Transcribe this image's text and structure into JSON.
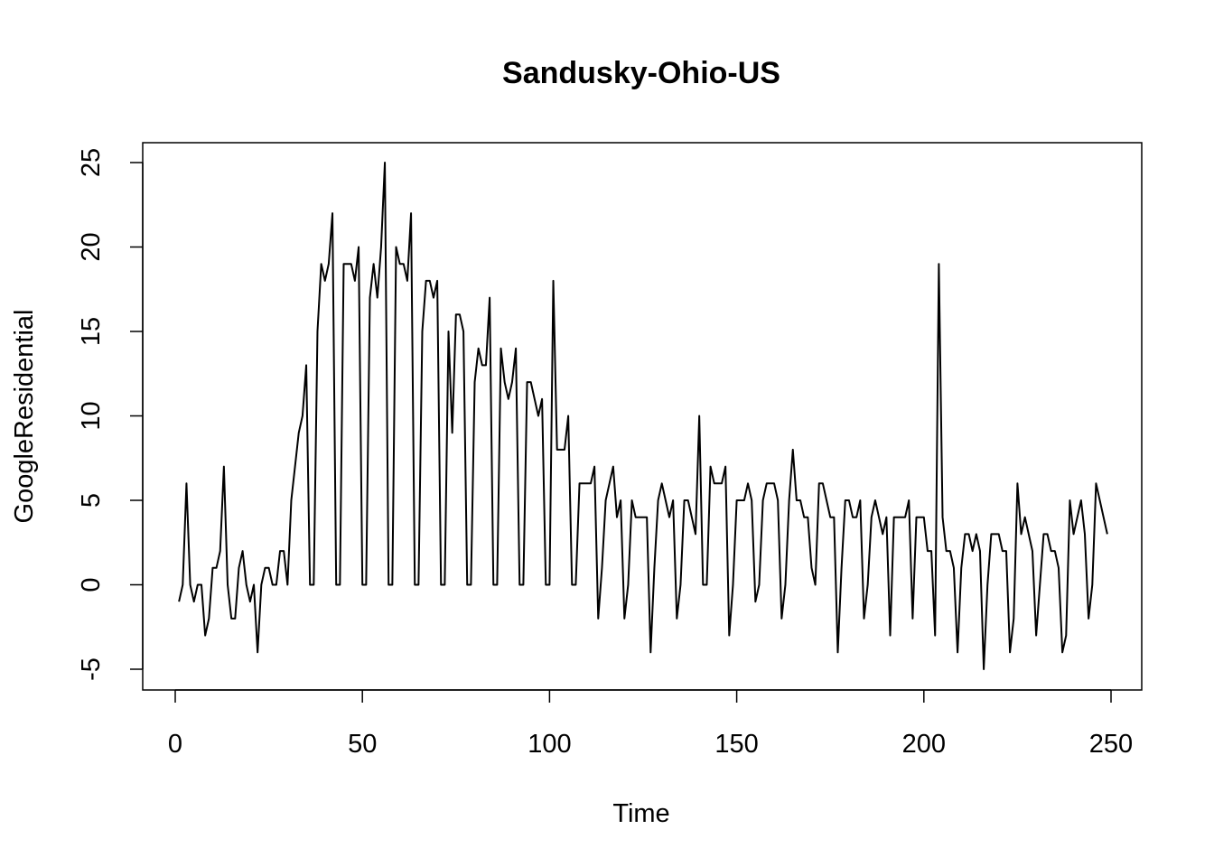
{
  "chart_data": {
    "type": "line",
    "title": "Sandusky-Ohio-US",
    "xlabel": "Time",
    "ylabel": "GoogleResidential",
    "xlim": [
      1,
      248
    ],
    "ylim": [
      -5,
      25
    ],
    "xticks": [
      0,
      50,
      100,
      150,
      200,
      250
    ],
    "yticks": [
      -5,
      0,
      5,
      10,
      15,
      20,
      25
    ],
    "grid": false,
    "series": [
      {
        "color": "#000000",
        "x_start": 1,
        "values": [
          -1,
          0,
          6,
          0,
          -1,
          0,
          0,
          -3,
          -2,
          1,
          1,
          2,
          7,
          0,
          -2,
          -2,
          1,
          2,
          0,
          -1,
          0,
          -4,
          0,
          1,
          1,
          0,
          0,
          2,
          2,
          0,
          5,
          7,
          9,
          10,
          13,
          0,
          0,
          15,
          19,
          18,
          19,
          22,
          0,
          0,
          19,
          19,
          19,
          18,
          20,
          0,
          0,
          17,
          19,
          17,
          20,
          25,
          0,
          0,
          20,
          19,
          19,
          18,
          22,
          0,
          0,
          15,
          18,
          18,
          17,
          18,
          0,
          0,
          15,
          9,
          16,
          16,
          15,
          0,
          0,
          12,
          14,
          13,
          13,
          17,
          0,
          0,
          14,
          12,
          11,
          12,
          14,
          0,
          0,
          12,
          12,
          11,
          10,
          11,
          0,
          0,
          18,
          8,
          8,
          8,
          10,
          0,
          0,
          6,
          6,
          6,
          6,
          7,
          -2,
          1,
          5,
          6,
          7,
          4,
          5,
          -2,
          0,
          5,
          4,
          4,
          4,
          4,
          -4,
          1,
          5,
          6,
          5,
          4,
          5,
          -2,
          0,
          5,
          5,
          4,
          3,
          10,
          0,
          0,
          7,
          6,
          6,
          6,
          7,
          -3,
          0,
          5,
          5,
          5,
          6,
          5,
          -1,
          0,
          5,
          6,
          6,
          6,
          5,
          -2,
          0,
          5,
          8,
          5,
          5,
          4,
          4,
          1,
          0,
          6,
          6,
          5,
          4,
          4,
          -4,
          1,
          5,
          5,
          4,
          4,
          5,
          -2,
          0,
          4,
          5,
          4,
          3,
          4,
          -3,
          4,
          4,
          4,
          4,
          5,
          -2,
          4,
          4,
          4,
          2,
          2,
          -3,
          19,
          4,
          2,
          2,
          1,
          -4,
          1,
          3,
          3,
          2,
          3,
          2,
          -5,
          0,
          3,
          3,
          3,
          2,
          2,
          -4,
          -2,
          6,
          3,
          4,
          3,
          2,
          -3,
          0,
          3,
          3,
          2,
          2,
          1,
          -4,
          -3,
          5,
          3,
          4,
          5,
          3,
          -2,
          0,
          6,
          5,
          4,
          3
        ]
      }
    ]
  }
}
